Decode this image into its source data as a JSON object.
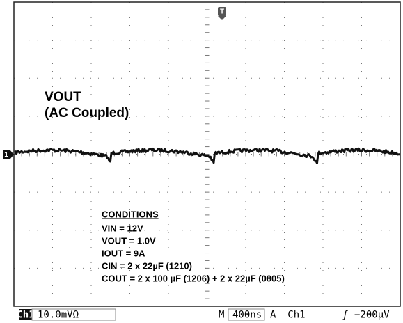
{
  "labels": {
    "signal": "VOUT",
    "coupling": "(AC Coupled)"
  },
  "conditions": {
    "heading": "CONDITIONS",
    "lines": [
      "VIN = 12V",
      "VOUT = 1.0V",
      "IOUT = 9A",
      "CIN = 2 x 22µF (1210)",
      "COUT = 2 x 100 µF (1206) + 2 x 22µF (0805)"
    ]
  },
  "markers": {
    "trigger": "T",
    "channel": "1"
  },
  "status_bar": {
    "channel": "Ch1",
    "scale": "10.0mVΩ",
    "timebase_prefix": "M",
    "timebase": "400ns",
    "trigger_source": "A  Ch1",
    "trigger_slope": "ʃ",
    "trigger_level": "−200µV"
  }
}
